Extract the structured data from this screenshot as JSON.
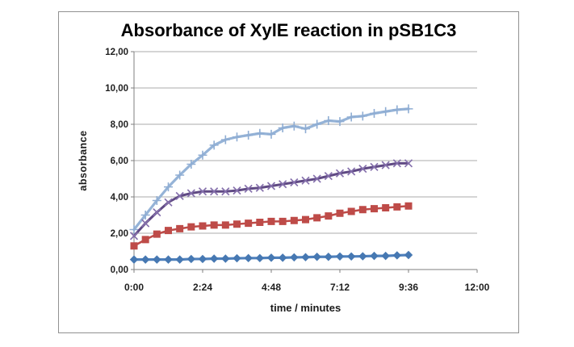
{
  "chart": {
    "title": "Absorbance of XylE reaction in pSB1C3",
    "background": "#ffffff",
    "frame_border_color": "#919191"
  },
  "chart_data": {
    "type": "line",
    "title": "Absorbance of XylE reaction in pSB1C3",
    "xlabel": "time / minutes",
    "ylabel": "absorbance",
    "ylim": [
      0,
      12
    ],
    "x_max_seconds": 720,
    "grid": "horizontal",
    "legend": "none",
    "colors": {
      "gridline": "#ABABAB",
      "axis": "#7F7F7F",
      "tick_text": "#1F1F1F",
      "title_text": "#000000"
    },
    "y_ticks": [
      {
        "value": 0,
        "label": "0,00"
      },
      {
        "value": 2,
        "label": "2,00"
      },
      {
        "value": 4,
        "label": "4,00"
      },
      {
        "value": 6,
        "label": "6,00"
      },
      {
        "value": 8,
        "label": "8,00"
      },
      {
        "value": 10,
        "label": "10,00"
      },
      {
        "value": 12,
        "label": "12,00"
      }
    ],
    "x_ticks": [
      {
        "seconds": 0,
        "label": "0:00"
      },
      {
        "seconds": 144,
        "label": "2:24"
      },
      {
        "seconds": 288,
        "label": "4:48"
      },
      {
        "seconds": 432,
        "label": "7:12"
      },
      {
        "seconds": 576,
        "label": "9:36"
      },
      {
        "seconds": 720,
        "label": "12:00"
      }
    ],
    "x_seconds": [
      0,
      24,
      48,
      72,
      96,
      120,
      144,
      168,
      192,
      216,
      240,
      264,
      288,
      312,
      336,
      360,
      384,
      408,
      432,
      456,
      480,
      504,
      528,
      552,
      576
    ],
    "series": [
      {
        "name": "light-blue-plus",
        "marker": "plus",
        "color": "#95B3D7",
        "marker_color": "#8FADD3",
        "line_width": 3.2,
        "values": [
          2.2,
          3.0,
          3.8,
          4.55,
          5.2,
          5.8,
          6.3,
          6.85,
          7.15,
          7.3,
          7.4,
          7.5,
          7.45,
          7.8,
          7.9,
          7.75,
          8.0,
          8.2,
          8.15,
          8.4,
          8.45,
          8.6,
          8.7,
          8.8,
          8.85
        ]
      },
      {
        "name": "purple-x",
        "marker": "x",
        "color": "#604A84",
        "marker_color": "#8570AC",
        "line_width": 3.0,
        "values": [
          1.85,
          2.55,
          3.15,
          3.7,
          4.05,
          4.2,
          4.3,
          4.3,
          4.3,
          4.35,
          4.45,
          4.5,
          4.6,
          4.7,
          4.8,
          4.9,
          5.0,
          5.15,
          5.3,
          5.4,
          5.55,
          5.65,
          5.75,
          5.85,
          5.85
        ]
      },
      {
        "name": "red-square",
        "marker": "square",
        "color": "#BE4B48",
        "marker_color": "#BE4B48",
        "line_width": 2.6,
        "values": [
          1.3,
          1.65,
          1.95,
          2.15,
          2.25,
          2.35,
          2.4,
          2.45,
          2.45,
          2.5,
          2.55,
          2.6,
          2.65,
          2.65,
          2.7,
          2.75,
          2.85,
          2.95,
          3.1,
          3.2,
          3.3,
          3.35,
          3.4,
          3.45,
          3.5
        ]
      },
      {
        "name": "dark-blue-diamond",
        "marker": "diamond",
        "color": "#4F81BD",
        "marker_color": "#4678B2",
        "line_width": 3.2,
        "values": [
          0.55,
          0.55,
          0.55,
          0.55,
          0.55,
          0.58,
          0.58,
          0.6,
          0.6,
          0.62,
          0.63,
          0.63,
          0.65,
          0.65,
          0.67,
          0.68,
          0.7,
          0.7,
          0.72,
          0.72,
          0.73,
          0.75,
          0.75,
          0.78,
          0.8
        ]
      }
    ]
  }
}
